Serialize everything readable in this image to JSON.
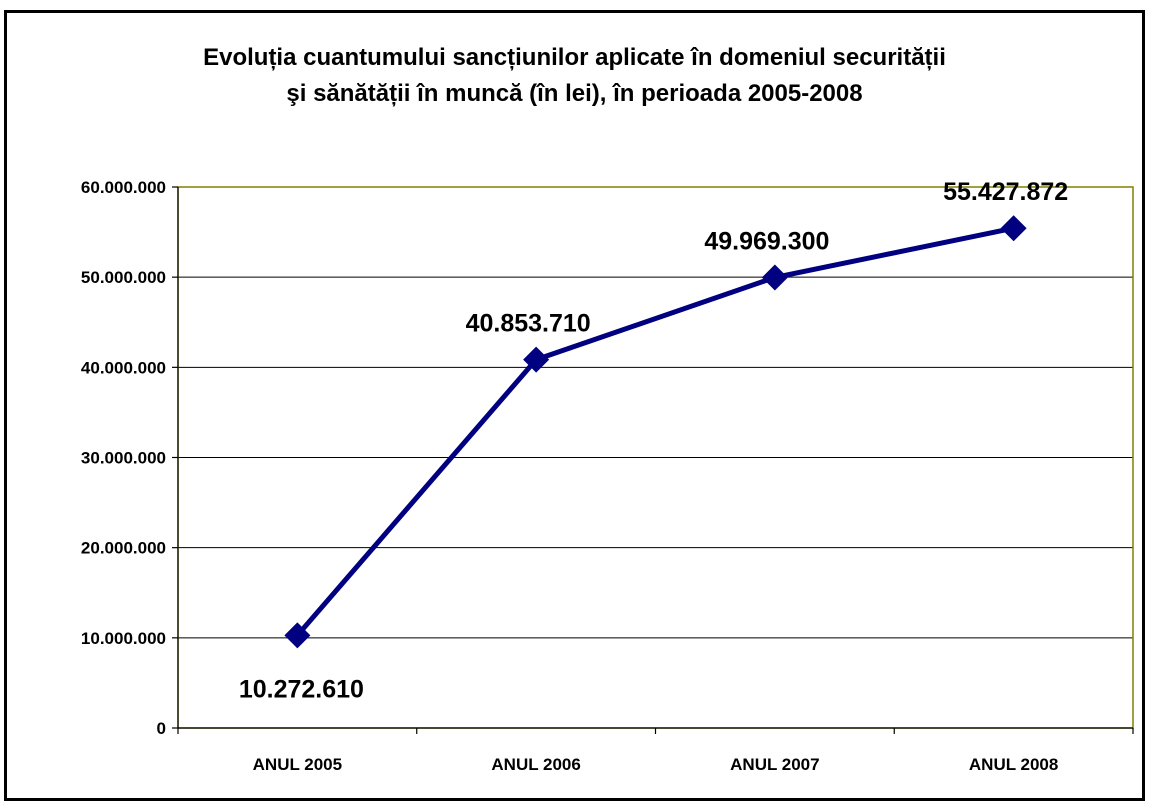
{
  "chart_data": {
    "type": "line",
    "title_lines": [
      "Evoluția cuantumului sancțiunilor aplicate în domeniul securității",
      "şi sănătății în muncă (în lei), în perioada 2005-2008"
    ],
    "categories": [
      "ANUL 2005",
      "ANUL 2006",
      "ANUL 2007",
      "ANUL 2008"
    ],
    "series": [
      {
        "values": [
          10272610,
          40853710,
          49969300,
          55427872
        ],
        "color": "#000080",
        "marker": "diamond"
      }
    ],
    "data_labels": [
      "10.272.610",
      "40.853.710",
      "49.969.300",
      "55.427.872"
    ],
    "data_label_positions": [
      "below",
      "above",
      "above",
      "above"
    ],
    "y_ticks": [
      0,
      10000000,
      20000000,
      30000000,
      40000000,
      50000000,
      60000000
    ],
    "y_tick_labels": [
      "0",
      "10.000.000",
      "20.000.000",
      "30.000.000",
      "40.000.000",
      "50.000.000",
      "60.000.000"
    ],
    "ylim": [
      0,
      60000000
    ],
    "xlabel": "",
    "ylabel": "",
    "grid": true,
    "legend": "none",
    "colors": {
      "line": "#000080",
      "plot_border": "#808000",
      "gridline": "#000000",
      "frame": "#000000"
    }
  }
}
